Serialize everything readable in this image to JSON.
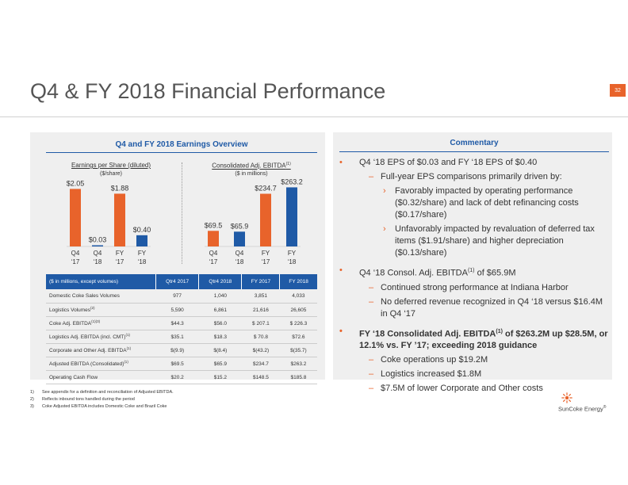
{
  "page_number": "32",
  "title": "Q4 & FY 2018 Financial Performance",
  "left_section": {
    "heading": "Q4 and FY 2018 Earnings Overview"
  },
  "chart_data": [
    {
      "type": "bar",
      "title": "Earnings per Share (diluted)",
      "subtitle": "($/share)",
      "categories": [
        "Q4 ‘17",
        "Q4 ‘18",
        "FY ‘17",
        "FY ‘18"
      ],
      "category_lines": [
        [
          "Q4",
          "‘17"
        ],
        [
          "Q4",
          "‘18"
        ],
        [
          "FY",
          "‘17"
        ],
        [
          "FY",
          "‘18"
        ]
      ],
      "values": [
        2.05,
        0.03,
        1.88,
        0.4
      ],
      "labels": [
        "$2.05",
        "$0.03",
        "$1.88",
        "$0.40"
      ],
      "colors": [
        "#e8632b",
        "#1f5aa6",
        "#e8632b",
        "#1f5aa6"
      ],
      "ylim": [
        0,
        2.4
      ]
    },
    {
      "type": "bar",
      "title": "Consolidated Adj. EBITDA",
      "title_sup": "(1)",
      "subtitle": "($ in millions)",
      "categories": [
        "Q4 ‘17",
        "Q4 ‘18",
        "FY ‘17",
        "FY ‘18"
      ],
      "category_lines": [
        [
          "Q4",
          "‘17"
        ],
        [
          "Q4",
          "‘18"
        ],
        [
          "FY",
          "‘17"
        ],
        [
          "FY",
          "‘18"
        ]
      ],
      "values": [
        69.5,
        65.9,
        234.7,
        263.2
      ],
      "labels": [
        "$69.5",
        "$65.9",
        "$234.7",
        "$263.2"
      ],
      "colors": [
        "#e8632b",
        "#1f5aa6",
        "#e8632b",
        "#1f5aa6"
      ],
      "ylim": [
        0,
        300
      ]
    }
  ],
  "table": {
    "headers": [
      "($ in millions, except volumes)",
      "Qtr4 2017",
      "Qtr4 2018",
      "FY 2017",
      "FY 2018"
    ],
    "rows": [
      {
        "label": "Domestic Coke Sales Volumes",
        "sup": "",
        "values": [
          "977",
          "1,040",
          "3,851",
          "4,033"
        ]
      },
      {
        "label": "Logistics Volumes",
        "sup": "(2)",
        "values": [
          "5,590",
          "6,861",
          "21,616",
          "26,605"
        ]
      },
      {
        "label": "Coke Adj. EBITDA",
        "sup": "(1)(3)",
        "values": [
          "$44.3",
          "$56.0",
          "$ 207.1",
          "$ 226.3"
        ]
      },
      {
        "label": "Logistics Adj. EBITDA (incl. CMT)",
        "sup": "(1)",
        "values": [
          "$35.1",
          "$18.3",
          "$ 70.8",
          "$72.6"
        ]
      },
      {
        "label": "Corporate and Other Adj. EBITDA",
        "sup": "(1)",
        "values": [
          "$(9.9)",
          "$(8.4)",
          "$(43.2)",
          "$(35.7)"
        ]
      },
      {
        "label": "Adjusted EBITDA (Consolidated)",
        "sup": "(1)",
        "values": [
          "$69.5",
          "$65.9",
          "$234.7",
          "$263.2"
        ]
      },
      {
        "label": "Operating Cash Flow",
        "sup": "",
        "values": [
          "$20.2",
          "$15.2",
          "$148.5",
          "$185.8"
        ]
      }
    ]
  },
  "commentary": {
    "heading": "Commentary",
    "b1": "Q4 ‘18 EPS of $0.03 and FY ‘18 EPS of $0.40",
    "b1_1": "Full-year EPS comparisons primarily driven by:",
    "b1_1_1": "Favorably impacted by operating performance ($0.32/share) and lack of debt refinancing costs ($0.17/share)",
    "b1_1_2": "Unfavorably impacted by revaluation of deferred tax items ($1.91/share) and higher depreciation ($0.13/share)",
    "b2_pre": "Q4 ‘18 Consol. Adj. EBITDA",
    "b2_sup": "(1)",
    "b2_post": " of $65.9M",
    "b2_1": "Continued strong performance at Indiana Harbor",
    "b2_2": "No deferred revenue recognized in Q4 ‘18 versus $16.4M in Q4 ‘17",
    "b3_pre": "FY ‘18 Consolidated Adj. EBITDA",
    "b3_sup": "(1)",
    "b3_post": " of $263.2M up $28.5M, or 12.1% vs. FY ’17; exceeding 2018 guidance",
    "b3_1": "Coke operations up $19.2M",
    "b3_2": "Logistics increased $1.8M",
    "b3_3": "$7.5M of lower Corporate and Other costs",
    "bullet": "•",
    "dash": "–",
    "arrow": "›"
  },
  "footnotes": [
    {
      "num": "1)",
      "text": "See appendix for a definition and reconciliation of Adjusted EBITDA."
    },
    {
      "num": "2)",
      "text": "Reflects inbound tons handled during the period"
    },
    {
      "num": "3)",
      "text": "Coke Adjusted EBITDA includes Domestic Coke and Brazil Coke"
    }
  ],
  "logo": {
    "text": "SunCoke Energy",
    "mark": "®",
    "icon": "sun-icon"
  },
  "colors": {
    "accent": "#e8632b",
    "brand_blue": "#1f5aa6",
    "panel": "#efefef"
  }
}
